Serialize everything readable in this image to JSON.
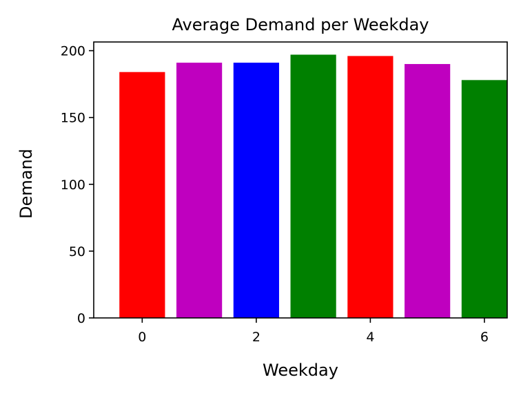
{
  "chart_data": {
    "type": "bar",
    "title": "Average Demand per Weekday",
    "xlabel": "Weekday",
    "ylabel": "Demand",
    "categories": [
      0,
      1,
      2,
      3,
      4,
      5,
      6
    ],
    "values": [
      184,
      191,
      191,
      197,
      196,
      190,
      178
    ],
    "colors": [
      "#ff0000",
      "#bf00bf",
      "#0000ff",
      "#008000",
      "#ff0000",
      "#bf00bf",
      "#008000"
    ],
    "xlim": [
      -0.85,
      6.4
    ],
    "ylim": [
      0,
      206.5
    ],
    "xticks": [
      0,
      2,
      4,
      6
    ],
    "yticks": [
      0,
      50,
      100,
      150,
      200
    ],
    "grid": false,
    "legend": "none"
  }
}
